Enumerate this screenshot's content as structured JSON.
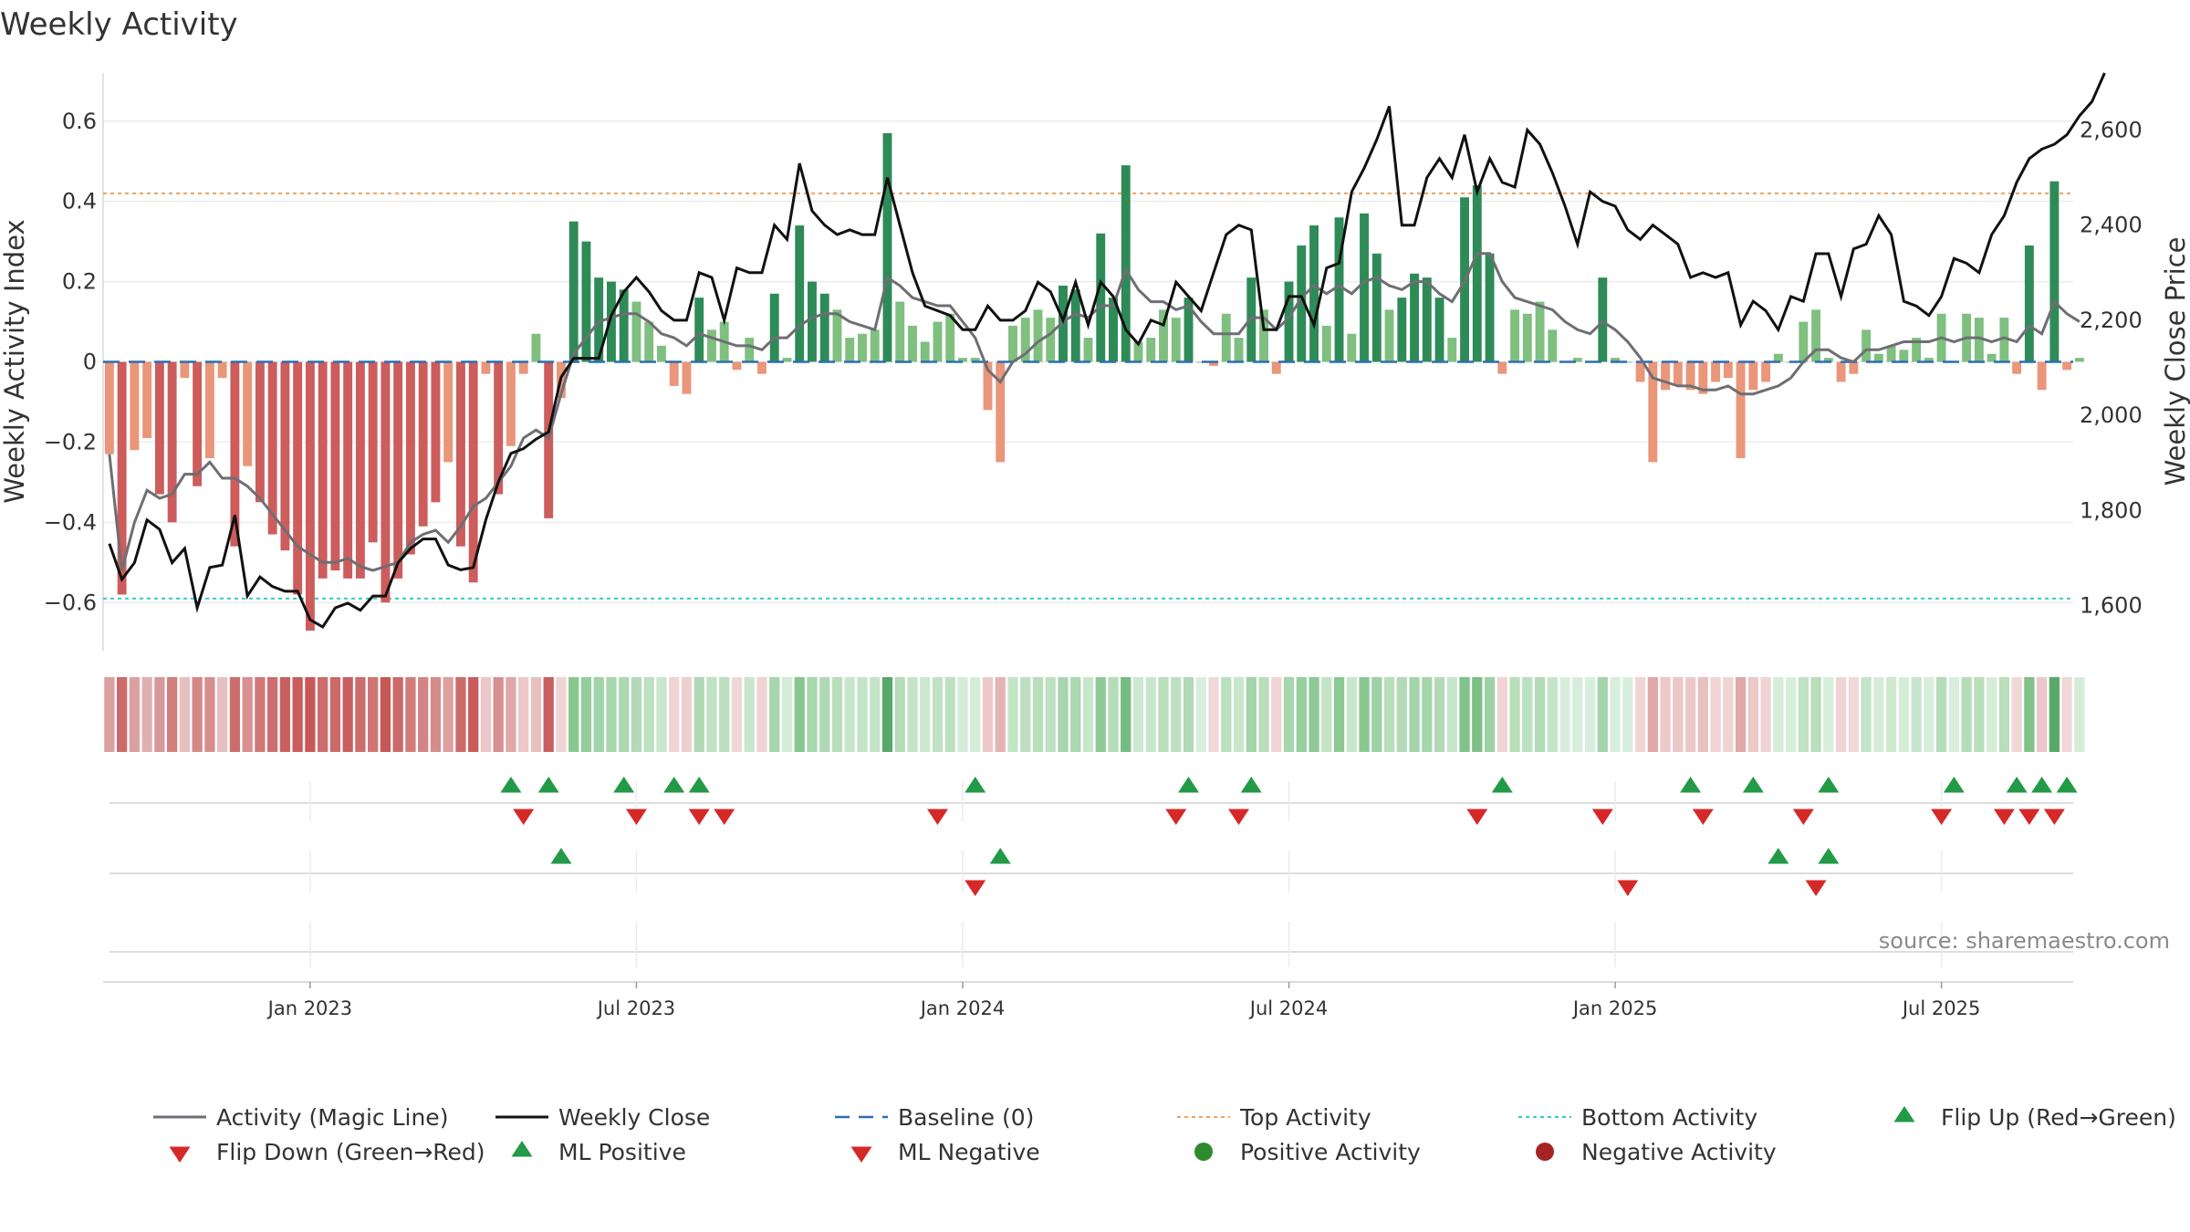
{
  "chart_data": {
    "type": "bar",
    "title": "Weekly Activity",
    "ylabel_left": "Weekly Activity Index",
    "ylabel_right": "Weekly Close Price",
    "source_text": "source: sharemaestro.com",
    "y_left_range": [
      -0.72,
      0.72
    ],
    "y_left_ticks": [
      {
        "v": 0.6,
        "label": "0.6"
      },
      {
        "v": 0.4,
        "label": "0.4"
      },
      {
        "v": 0.2,
        "label": "0.2"
      },
      {
        "v": 0,
        "label": "0"
      },
      {
        "v": -0.2,
        "label": "−0.2"
      },
      {
        "v": -0.4,
        "label": "−0.4"
      },
      {
        "v": -0.6,
        "label": "−0.6"
      }
    ],
    "y_right_range": [
      1505,
      2720
    ],
    "y_right_ticks": [
      {
        "v": 2600,
        "label": "2,600"
      },
      {
        "v": 2400,
        "label": "2,400"
      },
      {
        "v": 2200,
        "label": "2,200"
      },
      {
        "v": 2000,
        "label": "2,000"
      },
      {
        "v": 1800,
        "label": "1,800"
      },
      {
        "v": 1600,
        "label": "1,600"
      }
    ],
    "x_start": "2022-09-09",
    "x_range_weeks": [
      -0.5,
      156.5
    ],
    "date_ticks": [
      {
        "week": 16,
        "label": "Jan 2023"
      },
      {
        "week": 42,
        "label": "Jul 2023"
      },
      {
        "week": 68,
        "label": "Jan 2024"
      },
      {
        "week": 94,
        "label": "Jul 2024"
      },
      {
        "week": 120,
        "label": "Jan 2025"
      },
      {
        "week": 146,
        "label": "Jul 2025"
      }
    ],
    "top_activity": 0.42,
    "bottom_activity": -0.59,
    "baseline": 0,
    "activity": [
      -0.23,
      -0.58,
      -0.22,
      -0.19,
      -0.33,
      -0.4,
      -0.04,
      -0.31,
      -0.24,
      -0.04,
      -0.46,
      -0.26,
      -0.35,
      -0.43,
      -0.47,
      -0.58,
      -0.67,
      -0.54,
      -0.52,
      -0.54,
      -0.54,
      -0.45,
      -0.6,
      -0.54,
      -0.48,
      -0.41,
      -0.35,
      -0.25,
      -0.46,
      -0.55,
      -0.03,
      -0.33,
      -0.21,
      -0.03,
      0.07,
      -0.39,
      -0.09,
      0.35,
      0.3,
      0.21,
      0.2,
      0.18,
      0.15,
      0.1,
      0.04,
      -0.06,
      -0.08,
      0.16,
      0.08,
      0.1,
      -0.02,
      0.06,
      -0.03,
      0.17,
      0.01,
      0.34,
      0.2,
      0.17,
      0.13,
      0.06,
      0.07,
      0.08,
      0.57,
      0.15,
      0.09,
      0.05,
      0.1,
      0.12,
      0.01,
      0.01,
      -0.12,
      -0.25,
      0.09,
      0.11,
      0.13,
      0.11,
      0.19,
      0.18,
      0.06,
      0.32,
      0.16,
      0.49,
      0.05,
      0.06,
      0.13,
      0.11,
      0.16,
      0.0,
      -0.01,
      0.12,
      0.06,
      0.21,
      0.13,
      -0.03,
      0.2,
      0.29,
      0.34,
      0.09,
      0.36,
      0.07,
      0.37,
      0.27,
      0.13,
      0.16,
      0.22,
      0.21,
      0.16,
      0.06,
      0.41,
      0.44,
      0.27,
      -0.03,
      0.13,
      0.12,
      0.15,
      0.08,
      0.0,
      0.01,
      0.0,
      0.21,
      0.01,
      0.0,
      -0.05,
      -0.25,
      -0.07,
      -0.06,
      -0.07,
      -0.08,
      -0.05,
      -0.04,
      -0.24,
      -0.07,
      -0.05,
      0.02,
      0.0,
      0.1,
      0.13,
      0.01,
      -0.05,
      -0.03,
      0.08,
      0.02,
      0.04,
      0.03,
      0.06,
      0.01,
      0.12,
      0.0,
      0.12,
      0.11,
      0.02,
      0.11,
      -0.03,
      0.29,
      -0.07,
      0.45,
      -0.02,
      0.01
    ],
    "magic_line": [
      -0.23,
      -0.52,
      -0.4,
      -0.32,
      -0.34,
      -0.33,
      -0.28,
      -0.28,
      -0.25,
      -0.29,
      -0.29,
      -0.31,
      -0.34,
      -0.38,
      -0.42,
      -0.46,
      -0.48,
      -0.5,
      -0.5,
      -0.49,
      -0.51,
      -0.52,
      -0.51,
      -0.5,
      -0.45,
      -0.43,
      -0.42,
      -0.45,
      -0.41,
      -0.36,
      -0.34,
      -0.3,
      -0.26,
      -0.19,
      -0.17,
      -0.19,
      -0.08,
      0.02,
      0.06,
      0.1,
      0.11,
      0.12,
      0.12,
      0.1,
      0.07,
      0.06,
      0.04,
      0.07,
      0.06,
      0.05,
      0.04,
      0.04,
      0.03,
      0.06,
      0.06,
      0.09,
      0.11,
      0.12,
      0.12,
      0.1,
      0.09,
      0.08,
      0.21,
      0.19,
      0.16,
      0.15,
      0.14,
      0.14,
      0.1,
      0.06,
      -0.02,
      -0.05,
      0.0,
      0.02,
      0.05,
      0.07,
      0.1,
      0.12,
      0.11,
      0.14,
      0.14,
      0.23,
      0.18,
      0.15,
      0.15,
      0.13,
      0.14,
      0.1,
      0.07,
      0.07,
      0.07,
      0.11,
      0.11,
      0.08,
      0.11,
      0.16,
      0.19,
      0.17,
      0.19,
      0.17,
      0.2,
      0.21,
      0.19,
      0.18,
      0.2,
      0.2,
      0.17,
      0.15,
      0.2,
      0.27,
      0.27,
      0.2,
      0.16,
      0.15,
      0.14,
      0.13,
      0.1,
      0.08,
      0.07,
      0.1,
      0.08,
      0.05,
      0.01,
      -0.04,
      -0.05,
      -0.06,
      -0.06,
      -0.07,
      -0.07,
      -0.06,
      -0.08,
      -0.08,
      -0.07,
      -0.06,
      -0.04,
      0.0,
      0.03,
      0.03,
      0.01,
      0.0,
      0.03,
      0.03,
      0.04,
      0.05,
      0.05,
      0.05,
      0.06,
      0.05,
      0.06,
      0.06,
      0.05,
      0.06,
      0.05,
      0.09,
      0.07,
      0.15,
      0.12,
      0.1
    ],
    "weekly_close": [
      1730,
      1655,
      1690,
      1780,
      1760,
      1690,
      1720,
      1595,
      1680,
      1685,
      1790,
      1620,
      1660,
      1640,
      1630,
      1630,
      1570,
      1555,
      1595,
      1605,
      1590,
      1620,
      1620,
      1690,
      1720,
      1740,
      1740,
      1685,
      1675,
      1680,
      1780,
      1860,
      1920,
      1930,
      1950,
      1965,
      2080,
      2120,
      2120,
      2120,
      2210,
      2260,
      2290,
      2260,
      2220,
      2200,
      2200,
      2300,
      2290,
      2200,
      2310,
      2300,
      2300,
      2400,
      2370,
      2530,
      2430,
      2400,
      2380,
      2390,
      2380,
      2380,
      2500,
      2400,
      2300,
      2230,
      2220,
      2210,
      2180,
      2180,
      2230,
      2200,
      2200,
      2220,
      2280,
      2260,
      2200,
      2280,
      2190,
      2280,
      2250,
      2180,
      2150,
      2200,
      2190,
      2280,
      2250,
      2220,
      2300,
      2380,
      2400,
      2390,
      2180,
      2180,
      2250,
      2250,
      2190,
      2310,
      2320,
      2470,
      2520,
      2580,
      2650,
      2400,
      2400,
      2500,
      2540,
      2500,
      2590,
      2470,
      2540,
      2490,
      2480,
      2600,
      2570,
      2510,
      2440,
      2360,
      2470,
      2450,
      2440,
      2390,
      2370,
      2400,
      2380,
      2360,
      2290,
      2300,
      2290,
      2300,
      2190,
      2240,
      2220,
      2180,
      2250,
      2240,
      2340,
      2340,
      2250,
      2350,
      2360,
      2420,
      2380,
      2240,
      2230,
      2210,
      2250,
      2330,
      2320,
      2300,
      2380,
      2420,
      2490,
      2540,
      2560,
      2570,
      2590,
      2630,
      2660,
      2720
    ],
    "strip_colors": [
      "#dca0a0",
      "#cc6a6a",
      "#dca0a0",
      "#e0b0b0",
      "#d69898",
      "#d27e7e",
      "#e6c0c0",
      "#d38888",
      "#d88e8e",
      "#e6c0c0",
      "#cd6e6e",
      "#d89090",
      "#d07878",
      "#cd6e6e",
      "#c96060",
      "#c95c5c",
      "#c85858",
      "#cd6c6c",
      "#cc6a6a",
      "#c96060",
      "#cc6c6c",
      "#d07474",
      "#c85858",
      "#cc6a6a",
      "#d27c7c",
      "#d48484",
      "#d58c8c",
      "#dca0a0",
      "#cc6a6a",
      "#c85c5c",
      "#ecc8c8",
      "#d69090",
      "#e0a8a8",
      "#ecc8c8",
      "#e8c0c0",
      "#c86060",
      "#f0d4d4",
      "#88c890",
      "#94cc9c",
      "#a0d4a8",
      "#a8d8ae",
      "#acd8b2",
      "#b2dab8",
      "#bce0c0",
      "#c8e6cc",
      "#f0d4d4",
      "#ecd0d0",
      "#b0d8b4",
      "#c0e2c4",
      "#bce0c0",
      "#f0d8d8",
      "#c8e6cc",
      "#f0d4d4",
      "#a8d6ae",
      "#d4ecd8",
      "#88c890",
      "#a8d8ae",
      "#b0d8b4",
      "#b8deba",
      "#c8e6cc",
      "#c4e4c8",
      "#c4e4c8",
      "#58a86a",
      "#b6dcba",
      "#c4e4c8",
      "#cce8d0",
      "#c0e2c4",
      "#bce0c0",
      "#d4ecd8",
      "#d4ecd8",
      "#ecc8c8",
      "#e4b4b4",
      "#c4e4c8",
      "#bee0c2",
      "#b8deba",
      "#bee0c2",
      "#a8d6ae",
      "#aad8b0",
      "#c8e6cc",
      "#90ca98",
      "#b4dcb8",
      "#76bc82",
      "#cce8d0",
      "#c8e6cc",
      "#b8deba",
      "#bee0c2",
      "#b2dab8",
      "#d8eedc",
      "#f0d8d8",
      "#bae0be",
      "#c8e6cc",
      "#a4d4aa",
      "#b8deba",
      "#f0d4d4",
      "#a6d6ac",
      "#98cea0",
      "#8ec896",
      "#c4e4c8",
      "#8cc894",
      "#c8e6cc",
      "#88c890",
      "#9ed2a6",
      "#b8deba",
      "#b2dab8",
      "#a4d4aa",
      "#a6d6ac",
      "#b2dab8",
      "#c8e6cc",
      "#80c28a",
      "#7cc086",
      "#9ed2a6",
      "#f0d4d4",
      "#b8deba",
      "#bae0be",
      "#b2dab8",
      "#c4e4c8",
      "#d8eedc",
      "#d8eedc",
      "#d8eedc",
      "#a4d4aa",
      "#d8eedc",
      "#d8eedc",
      "#f0d4d4",
      "#e0a8a8",
      "#ecc8c8",
      "#ecc8c8",
      "#ecc8c8",
      "#e8c0c0",
      "#f0d4d4",
      "#f0d4d4",
      "#e0a8a8",
      "#ecc8c8",
      "#f0d4d4",
      "#d4ecd8",
      "#d8eedc",
      "#c0e2c4",
      "#b8deba",
      "#d8eedc",
      "#f0d4d4",
      "#f0d8d8",
      "#c4e4c8",
      "#d4ecd8",
      "#d0eace",
      "#d4ecd8",
      "#c8e6cc",
      "#d8eedc",
      "#b6dcba",
      "#d8eedc",
      "#b6dcba",
      "#b8deba",
      "#d4ecd8",
      "#b8deba",
      "#f0d8d8",
      "#80c28a",
      "#ecc8c8",
      "#58a86a",
      "#f0d8d8",
      "#d4ecd8"
    ],
    "flip_up": [
      32,
      35,
      41,
      45,
      47,
      69,
      86,
      91,
      111,
      126,
      131,
      137,
      147,
      152,
      154,
      156
    ],
    "flip_down": [
      33,
      42,
      47,
      49,
      66,
      85,
      90,
      109,
      119,
      127,
      135,
      146,
      151,
      153,
      155
    ],
    "ml_positive": [
      36,
      71,
      133,
      137
    ],
    "ml_negative": [
      69,
      121,
      136
    ],
    "legend": [
      {
        "label": "Activity (Magic Line)",
        "symbol": "line-gray"
      },
      {
        "label": "Weekly Close",
        "symbol": "line-black"
      },
      {
        "label": "Baseline (0)",
        "symbol": "dash-blue"
      },
      {
        "label": "Top Activity",
        "symbol": "dot-orange"
      },
      {
        "label": "Bottom Activity",
        "symbol": "dot-cyan"
      },
      {
        "label": "Flip Up (Red→Green)",
        "symbol": "tri-up"
      },
      {
        "label": "Flip Down (Green→Red)",
        "symbol": "tri-down"
      },
      {
        "label": "ML Positive",
        "symbol": "tri-up"
      },
      {
        "label": "ML Negative",
        "symbol": "tri-down"
      },
      {
        "label": "Positive Activity",
        "symbol": "circle-green"
      },
      {
        "label": "Negative Activity",
        "symbol": "circle-red"
      }
    ]
  }
}
